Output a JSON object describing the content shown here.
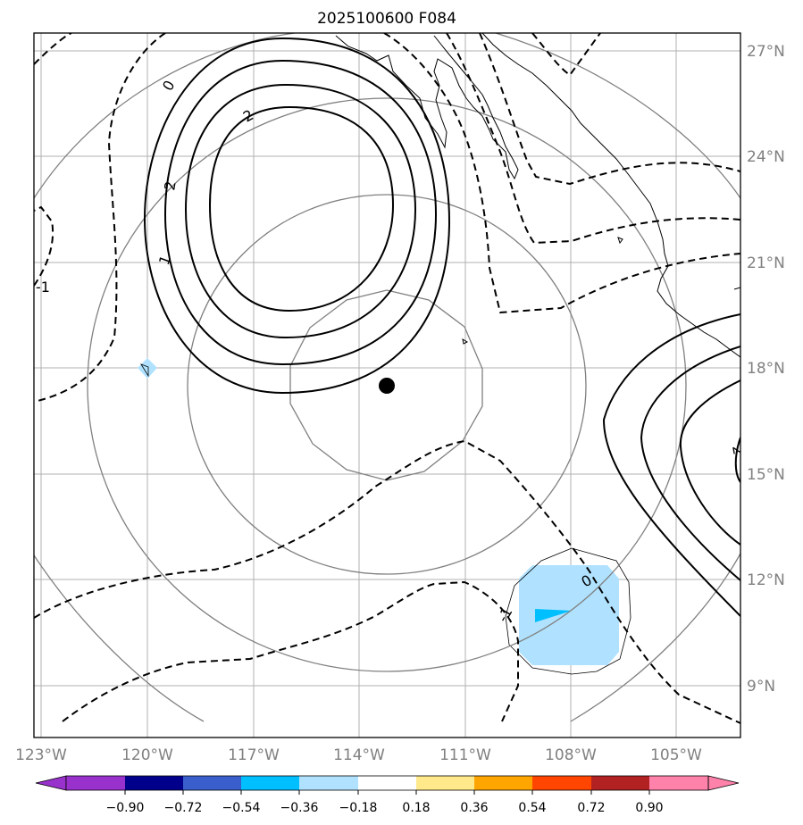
{
  "title": "2025100600 F084",
  "lat_labels": [
    {
      "value": 27,
      "text": "27°N"
    },
    {
      "value": 24,
      "text": "24°N"
    },
    {
      "value": 21,
      "text": "21°N"
    },
    {
      "value": 18,
      "text": "18°N"
    },
    {
      "value": 15,
      "text": "15°N"
    },
    {
      "value": 12,
      "text": "12°N"
    },
    {
      "value": 9,
      "text": "9°N"
    }
  ],
  "lon_labels": [
    {
      "value": -123,
      "text": "123°W"
    },
    {
      "value": -120,
      "text": "120°W"
    },
    {
      "value": -117,
      "text": "117°W"
    },
    {
      "value": -114,
      "text": "114°W"
    },
    {
      "value": -111,
      "text": "111°W"
    },
    {
      "value": -108,
      "text": "108°W"
    },
    {
      "value": -105,
      "text": "105°W"
    }
  ],
  "colorbar": {
    "colors": [
      "#9932cc",
      "#00008b",
      "#3a5fcd",
      "#00bfff",
      "#b0e2ff",
      "#ffffff",
      "#ffe98b",
      "#ffa500",
      "#ff4500",
      "#b22222",
      "#ff82ab"
    ],
    "tick_labels": [
      "−0.90",
      "−0.72",
      "−0.54",
      "−0.36",
      "−0.18",
      "0.18",
      "0.36",
      "0.54",
      "0.72",
      "0.90"
    ]
  },
  "contour_labels": [
    "0",
    "2",
    "2",
    "1",
    "-1",
    "0",
    "-1",
    "2"
  ],
  "storm_center": {
    "lat": 17.5,
    "lon": -113.2
  },
  "colors": {
    "grid": "#b0b0b0",
    "range_rings": "#808080",
    "contours": "#000000",
    "coast": "#000000",
    "frame": "#000000",
    "tick_labels": "#808080"
  }
}
